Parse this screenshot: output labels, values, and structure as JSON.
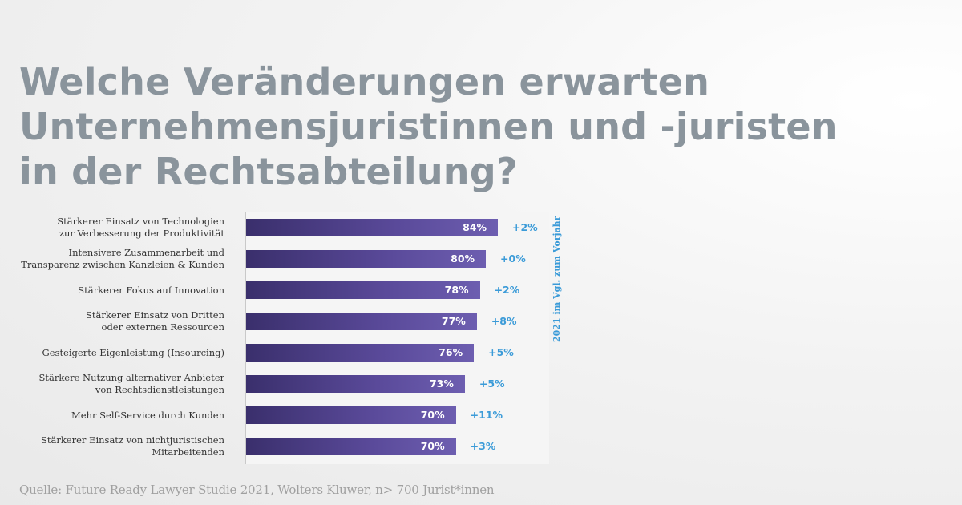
{
  "title_lines": [
    "Welche Veränderungen erwarten",
    "Unternehmensjuristinnen und -juristen",
    "in der Rechtsabteilung?"
  ],
  "source": "Quelle: Future Ready Lawyer Studie 2021, Wolters Kluwer, n> 700 Jurist*innen",
  "colors": {
    "bar": "#4e3f8a",
    "delta": "#3b9bd8",
    "title": "#8a949c"
  },
  "chart_data": {
    "type": "bar",
    "orientation": "horizontal",
    "categories": [
      [
        "Stärkerer Einsatz von Technologien",
        "zur Verbesserung der Produktivität"
      ],
      [
        "Intensivere Zusammenarbeit und",
        "Transparenz zwischen Kanzleien & Kunden"
      ],
      [
        "Stärkerer Fokus auf Innovation"
      ],
      [
        "Stärkerer Einsatz von Dritten",
        "oder externen Ressourcen"
      ],
      [
        "Gesteigerte Eigenleistung (Insourcing)"
      ],
      [
        "Stärkere Nutzung alternativer Anbieter",
        "von Rechtsdienstleistungen"
      ],
      [
        "Mehr Self-Service durch Kunden"
      ],
      [
        "Stärkerer Einsatz von nichtjuristischen",
        "Mitarbeitenden"
      ]
    ],
    "values": [
      84,
      80,
      78,
      77,
      76,
      73,
      70,
      70
    ],
    "value_labels": [
      "84%",
      "80%",
      "78%",
      "77%",
      "76%",
      "73%",
      "70%",
      "70%"
    ],
    "changes": [
      "+2%",
      "+0%",
      "+2%",
      "+8%",
      "+5%",
      "+5%",
      "+11%",
      "+3%"
    ],
    "change_caption": "2021 im Vgl. zum  Vorjahr",
    "xlim": [
      0,
      100
    ],
    "grid": false
  }
}
